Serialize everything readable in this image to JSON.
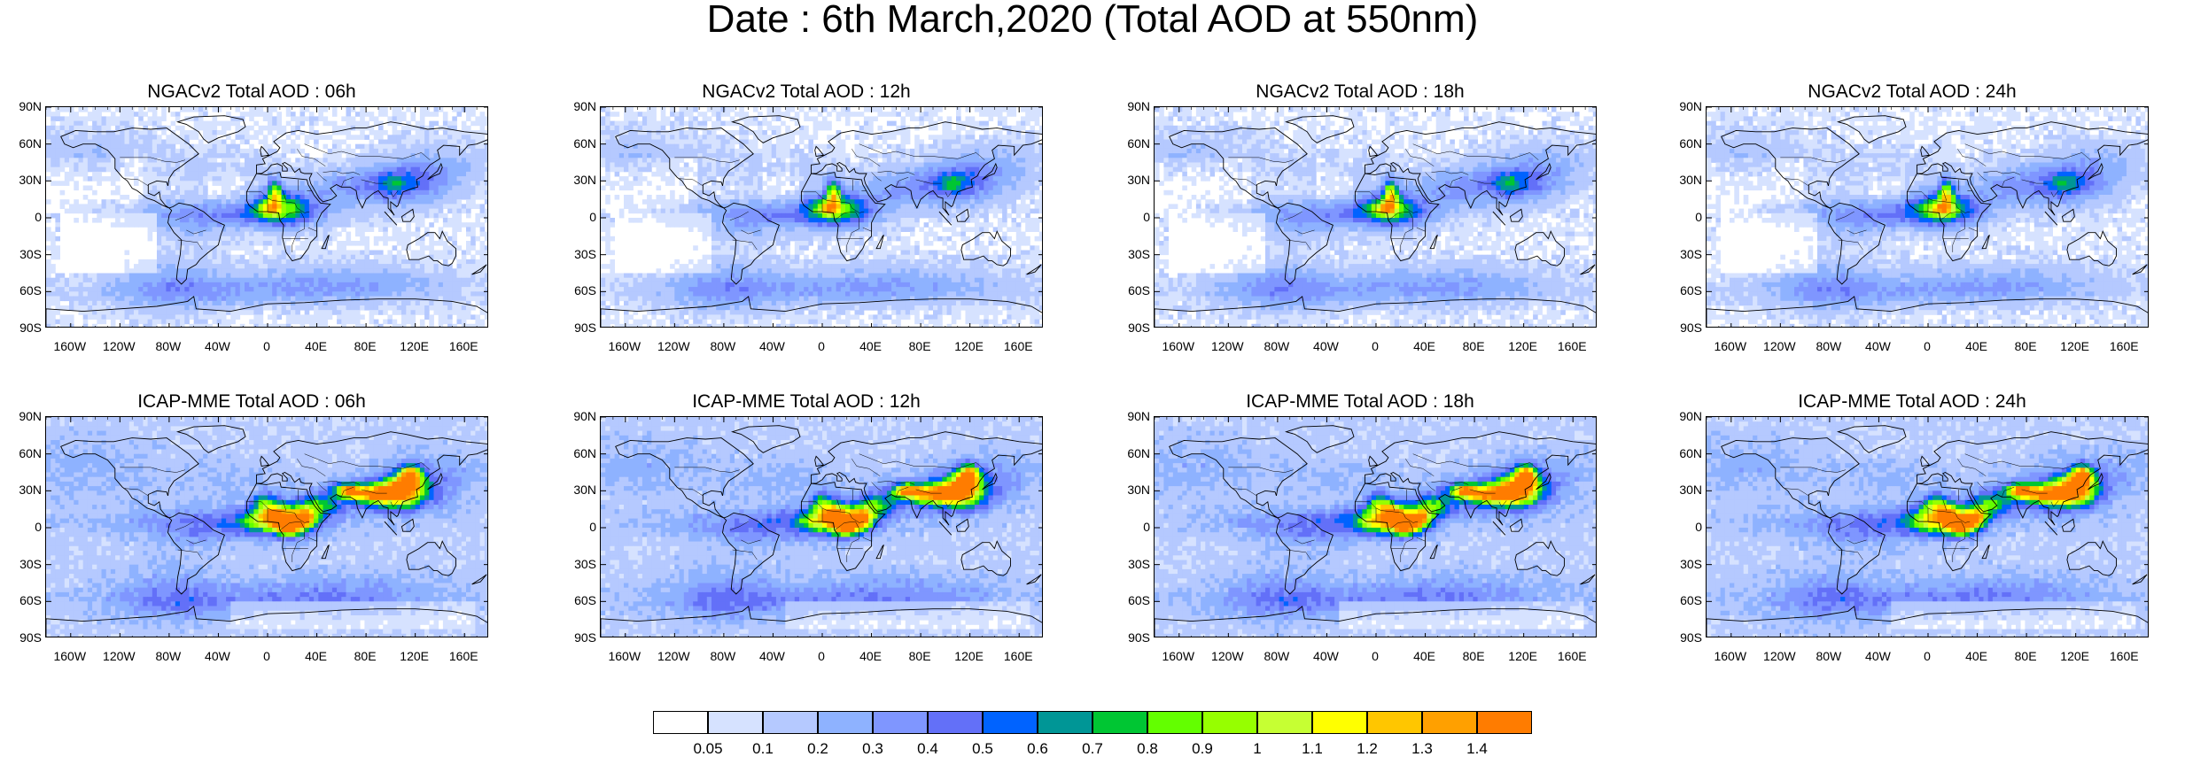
{
  "title": "Date : 6th March,2020 (Total AOD at 550nm)",
  "lat_ticks": [
    "90N",
    "60N",
    "30N",
    "0",
    "30S",
    "60S",
    "90S"
  ],
  "lon_ticks": [
    "160W",
    "120W",
    "80W",
    "40W",
    "0",
    "40E",
    "80E",
    "120E",
    "160E"
  ],
  "panels": [
    {
      "title": "NGACv2 Total AOD : 06h",
      "model": "NGACv2",
      "hour": "06h"
    },
    {
      "title": "NGACv2 Total AOD : 12h",
      "model": "NGACv2",
      "hour": "12h"
    },
    {
      "title": "NGACv2 Total AOD : 18h",
      "model": "NGACv2",
      "hour": "18h"
    },
    {
      "title": "NGACv2 Total AOD : 24h",
      "model": "NGACv2",
      "hour": "24h"
    },
    {
      "title": "ICAP-MME Total AOD : 06h",
      "model": "ICAP-MME",
      "hour": "06h"
    },
    {
      "title": "ICAP-MME Total AOD : 12h",
      "model": "ICAP-MME",
      "hour": "12h"
    },
    {
      "title": "ICAP-MME Total AOD : 18h",
      "model": "ICAP-MME",
      "hour": "18h"
    },
    {
      "title": "ICAP-MME Total AOD : 24h",
      "model": "ICAP-MME",
      "hour": "24h"
    }
  ],
  "colorbar": {
    "levels": [
      "0.05",
      "0.1",
      "0.2",
      "0.3",
      "0.4",
      "0.5",
      "0.6",
      "0.7",
      "0.8",
      "0.9",
      "1",
      "1.1",
      "1.2",
      "1.3",
      "1.4"
    ],
    "colors": [
      "#ffffff",
      "#d6e2ff",
      "#b5c9ff",
      "#8eb2ff",
      "#7f96ff",
      "#6370f8",
      "#0063ff",
      "#009696",
      "#00c633",
      "#63ff00",
      "#96ff00",
      "#c6ff33",
      "#ffff00",
      "#ffc600",
      "#ffa000",
      "#ff7c00",
      "#ff1900"
    ]
  }
}
